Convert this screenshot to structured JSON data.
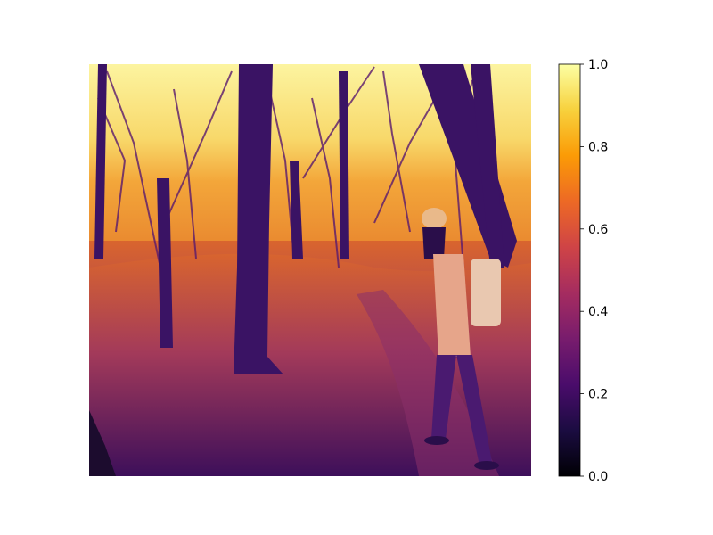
{
  "chart_data": {
    "type": "heatmap",
    "colormap": "inferno",
    "colormap_stops": [
      "#000004",
      "#1b0c41",
      "#4a0c6b",
      "#781c6d",
      "#a52c60",
      "#cf4446",
      "#ed6925",
      "#fb9b06",
      "#f7d13d",
      "#fcffa4"
    ],
    "image_content": "infrared forest scene rendered as a heatmap",
    "colorbar": {
      "range": [
        0.0,
        1.0
      ],
      "ticks": [
        0.0,
        0.2,
        0.4,
        0.6,
        0.8,
        1.0
      ],
      "tick_labels": [
        "0.0",
        "0.2",
        "0.4",
        "0.6",
        "0.8",
        "1.0"
      ]
    },
    "title": "",
    "xlabel": "",
    "ylabel": "",
    "grid": false
  }
}
